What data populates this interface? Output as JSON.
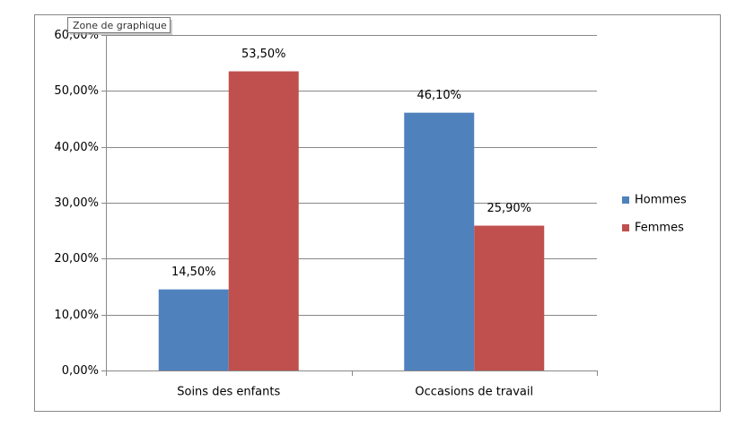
{
  "tooltip": "Zone de graphique",
  "chart_data": {
    "type": "bar",
    "categories": [
      "Soins des enfants",
      "Occasions de travail"
    ],
    "series": [
      {
        "name": "Hommes",
        "color": "#4f81bd",
        "values": [
          14.5,
          46.1
        ],
        "value_labels": [
          "14,50%",
          "46,10%"
        ]
      },
      {
        "name": "Femmes",
        "color": "#c0504d",
        "values": [
          53.5,
          25.9
        ],
        "value_labels": [
          "53,50%",
          "25,90%"
        ]
      }
    ],
    "ylim": [
      0,
      60
    ],
    "yticks": [
      {
        "value": 0,
        "label": "0,00%"
      },
      {
        "value": 10,
        "label": "10,00%"
      },
      {
        "value": 20,
        "label": "20,00%"
      },
      {
        "value": 30,
        "label": "30,00%"
      },
      {
        "value": 40,
        "label": "40,00%"
      },
      {
        "value": 50,
        "label": "50,00%"
      },
      {
        "value": 60,
        "label": "60,00%"
      }
    ],
    "grid": true,
    "legend": "right"
  }
}
